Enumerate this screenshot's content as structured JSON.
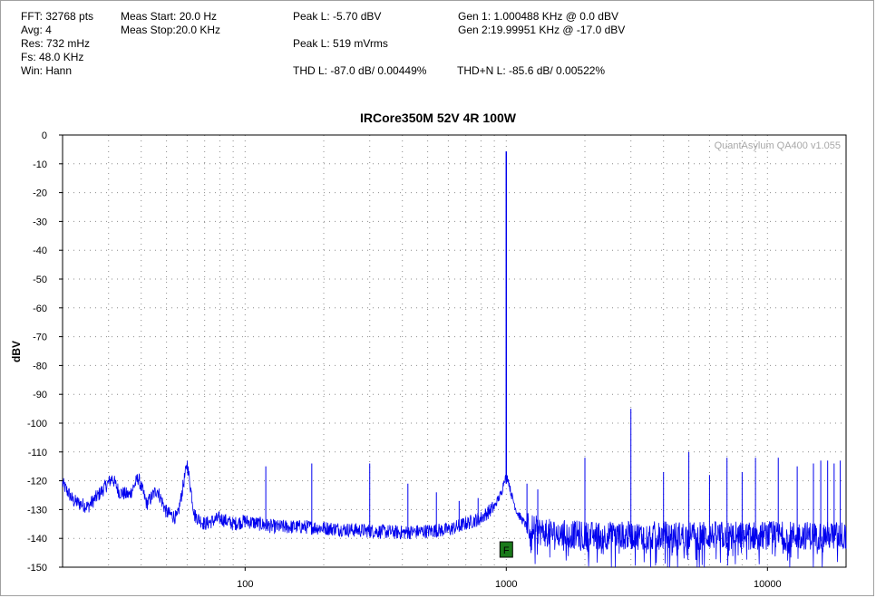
{
  "readouts": {
    "fft": "FFT: 32768 pts",
    "avg": "Avg: 4",
    "res": "Res: 732 mHz",
    "fs": "Fs: 48.0 KHz",
    "win": "Win: Hann",
    "meas_start": "Meas Start: 20.0 Hz",
    "meas_stop": "Meas Stop:20.0 KHz",
    "peak_dbv": "Peak L: -5.70 dBV",
    "peak_mvrms": "Peak L: 519 mVrms",
    "thd": "THD L: -87.0 dB/ 0.00449%",
    "thdn": "THD+N L: -85.6 dB/ 0.00522%",
    "gen1": "Gen 1: 1.000488 KHz @ 0.0  dBV",
    "gen2": "Gen 2:19.99951 KHz @ -17.0  dBV"
  },
  "marker": {
    "label": "F",
    "x_hz": 1000,
    "color": "#1a7a1a"
  },
  "chart_data": {
    "type": "line",
    "title": "IRCore350M 52V 4R 100W",
    "watermark": "QuantAsylum QA400 v1.055",
    "xlabel": "",
    "ylabel": "dBV",
    "xscale": "log",
    "xlim": [
      20,
      20000
    ],
    "ylim": [
      -150,
      0
    ],
    "yticks": [
      0,
      -10,
      -20,
      -30,
      -40,
      -50,
      -60,
      -70,
      -80,
      -90,
      -100,
      -110,
      -120,
      -130,
      -140,
      -150
    ],
    "ytick_labels": [
      "0",
      "-10",
      "-20",
      "-30",
      "-40",
      "-50",
      "-60",
      "-70",
      "-80",
      "-90",
      "-100",
      "-110",
      "-120",
      "-130",
      "-140",
      "-150"
    ],
    "xticks": [
      100,
      1000,
      10000
    ],
    "xtick_labels": [
      "100",
      "1000",
      "10000"
    ],
    "grid": true,
    "line_color": "#0000ee",
    "noise_floor": [
      [
        20,
        -121
      ],
      [
        22,
        -127
      ],
      [
        25,
        -129
      ],
      [
        28,
        -124
      ],
      [
        31,
        -119
      ],
      [
        33,
        -124
      ],
      [
        36,
        -125
      ],
      [
        39,
        -119
      ],
      [
        42,
        -128
      ],
      [
        46,
        -123
      ],
      [
        50,
        -131
      ],
      [
        55,
        -133
      ],
      [
        60,
        -114
      ],
      [
        64,
        -132
      ],
      [
        70,
        -135
      ],
      [
        80,
        -133
      ],
      [
        90,
        -135
      ],
      [
        100,
        -134
      ],
      [
        130,
        -136
      ],
      [
        170,
        -136
      ],
      [
        250,
        -137
      ],
      [
        400,
        -138
      ],
      [
        600,
        -137
      ],
      [
        800,
        -133
      ],
      [
        900,
        -129
      ],
      [
        960,
        -124
      ],
      [
        985,
        -119
      ],
      [
        1015,
        -119
      ],
      [
        1040,
        -124
      ],
      [
        1100,
        -131
      ],
      [
        1200,
        -136
      ],
      [
        1400,
        -138
      ],
      [
        2000,
        -139
      ],
      [
        4000,
        -139
      ],
      [
        10000,
        -139
      ],
      [
        20000,
        -139
      ]
    ],
    "peaks": [
      {
        "x": 1000,
        "y": -5.7
      },
      {
        "x": 2000,
        "y": -112
      },
      {
        "x": 3000,
        "y": -95
      },
      {
        "x": 4000,
        "y": -117
      },
      {
        "x": 5000,
        "y": -110
      },
      {
        "x": 6000,
        "y": -118
      },
      {
        "x": 7000,
        "y": -112
      },
      {
        "x": 8000,
        "y": -117
      },
      {
        "x": 9000,
        "y": -112
      },
      {
        "x": 11000,
        "y": -112
      },
      {
        "x": 13000,
        "y": -115
      },
      {
        "x": 15000,
        "y": -114
      },
      {
        "x": 16000,
        "y": -113
      },
      {
        "x": 17000,
        "y": -113
      },
      {
        "x": 18000,
        "y": -114
      },
      {
        "x": 19000,
        "y": -113
      },
      {
        "x": 60,
        "y": -114
      },
      {
        "x": 120,
        "y": -115
      },
      {
        "x": 180,
        "y": -114
      },
      {
        "x": 300,
        "y": -114
      },
      {
        "x": 420,
        "y": -121
      },
      {
        "x": 540,
        "y": -124
      },
      {
        "x": 660,
        "y": -127
      },
      {
        "x": 780,
        "y": -126
      },
      {
        "x": 1200,
        "y": -121
      },
      {
        "x": 1320,
        "y": -123
      }
    ]
  }
}
